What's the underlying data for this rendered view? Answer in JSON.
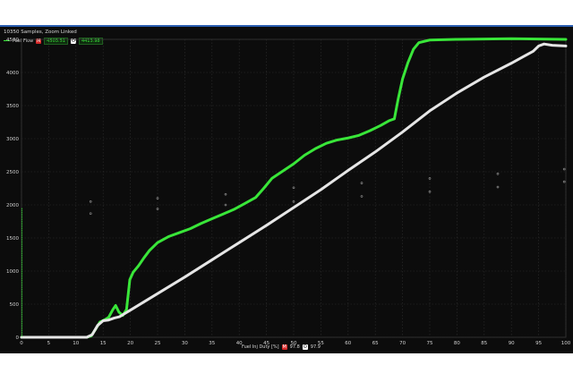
{
  "header": {
    "samples_label": "10350 Samples, Zoom Linked"
  },
  "legend": {
    "series_name": "Fuel Flow",
    "marker_m": "M",
    "value_m": "4503.51",
    "marker_o": "O",
    "value_o": "4413.98"
  },
  "footer": {
    "xlabel": "Fuel Inj Duty [%]",
    "marker_m": "M",
    "value_m": "97.8",
    "marker_o": "O",
    "value_o": "97.9"
  },
  "colors": {
    "green": "#39e639",
    "white": "#e6e6e6",
    "grid": "#2d2d2d",
    "frame_bg": "#0c0c0c"
  },
  "chart_data": {
    "type": "line",
    "xlabel": "Fuel Inj Duty [%]",
    "ylabel": "",
    "xlim": [
      0,
      100
    ],
    "ylim": [
      0,
      4500
    ],
    "x_ticks": [
      "0",
      "5",
      "10",
      "15",
      "20",
      "25",
      "30",
      "35",
      "40",
      "45",
      "50",
      "55",
      "60",
      "65",
      "70",
      "75",
      "80",
      "85",
      "90",
      "95",
      "100"
    ],
    "y_ticks": [
      "0",
      "500",
      "1000",
      "1500",
      "2000",
      "2500",
      "3000",
      "3500",
      "4000",
      "4500"
    ],
    "grid": true,
    "series": [
      {
        "name": "Fuel Flow",
        "color": "#39e639",
        "points": [
          [
            0,
            0
          ],
          [
            12,
            0
          ],
          [
            12.8,
            20
          ],
          [
            13.6,
            120
          ],
          [
            14.4,
            230
          ],
          [
            15.2,
            260
          ],
          [
            16,
            300
          ],
          [
            16.8,
            420
          ],
          [
            17.3,
            480
          ],
          [
            17.9,
            380
          ],
          [
            18.6,
            330
          ],
          [
            19.3,
            420
          ],
          [
            19.9,
            870
          ],
          [
            20.5,
            980
          ],
          [
            21.5,
            1080
          ],
          [
            22.5,
            1200
          ],
          [
            23.5,
            1310
          ],
          [
            25,
            1430
          ],
          [
            27,
            1520
          ],
          [
            29,
            1580
          ],
          [
            31,
            1640
          ],
          [
            33,
            1720
          ],
          [
            35,
            1790
          ],
          [
            37,
            1860
          ],
          [
            39,
            1930
          ],
          [
            41,
            2020
          ],
          [
            43,
            2110
          ],
          [
            44.5,
            2250
          ],
          [
            46,
            2400
          ],
          [
            48,
            2510
          ],
          [
            50,
            2620
          ],
          [
            52,
            2750
          ],
          [
            54,
            2850
          ],
          [
            56,
            2930
          ],
          [
            58,
            2980
          ],
          [
            60,
            3010
          ],
          [
            62,
            3050
          ],
          [
            64,
            3120
          ],
          [
            66,
            3200
          ],
          [
            67.5,
            3270
          ],
          [
            68.5,
            3300
          ],
          [
            69.2,
            3600
          ],
          [
            70,
            3900
          ],
          [
            71,
            4150
          ],
          [
            72,
            4350
          ],
          [
            73,
            4450
          ],
          [
            75,
            4490
          ],
          [
            80,
            4500
          ],
          [
            90,
            4510
          ],
          [
            100,
            4500
          ]
        ]
      },
      {
        "name": "",
        "color": "#e6e6e6",
        "points": [
          [
            0,
            0
          ],
          [
            12,
            0
          ],
          [
            13,
            40
          ],
          [
            14,
            180
          ],
          [
            15,
            250
          ],
          [
            16,
            260
          ],
          [
            17,
            290
          ],
          [
            18,
            310
          ],
          [
            19,
            360
          ],
          [
            20,
            410
          ],
          [
            25,
            660
          ],
          [
            30,
            910
          ],
          [
            35,
            1170
          ],
          [
            40,
            1430
          ],
          [
            45,
            1690
          ],
          [
            50,
            1960
          ],
          [
            55,
            2230
          ],
          [
            60,
            2520
          ],
          [
            65,
            2800
          ],
          [
            70,
            3100
          ],
          [
            75,
            3420
          ],
          [
            80,
            3690
          ],
          [
            85,
            3930
          ],
          [
            90,
            4140
          ],
          [
            92,
            4230
          ],
          [
            94,
            4320
          ],
          [
            95,
            4400
          ],
          [
            96,
            4430
          ],
          [
            97.5,
            4410
          ],
          [
            100,
            4400
          ]
        ]
      }
    ],
    "scatter_points": [
      [
        12.7,
        2050
      ],
      [
        12.7,
        1870
      ],
      [
        25,
        2100
      ],
      [
        25,
        1940
      ],
      [
        37.5,
        2160
      ],
      [
        37.5,
        2000
      ],
      [
        50,
        2260
      ],
      [
        50,
        2050
      ],
      [
        62.5,
        2330
      ],
      [
        62.5,
        2130
      ],
      [
        75,
        2400
      ],
      [
        75,
        2200
      ],
      [
        87.5,
        2470
      ],
      [
        87.5,
        2270
      ],
      [
        99.7,
        2540
      ],
      [
        99.7,
        2350
      ]
    ]
  }
}
